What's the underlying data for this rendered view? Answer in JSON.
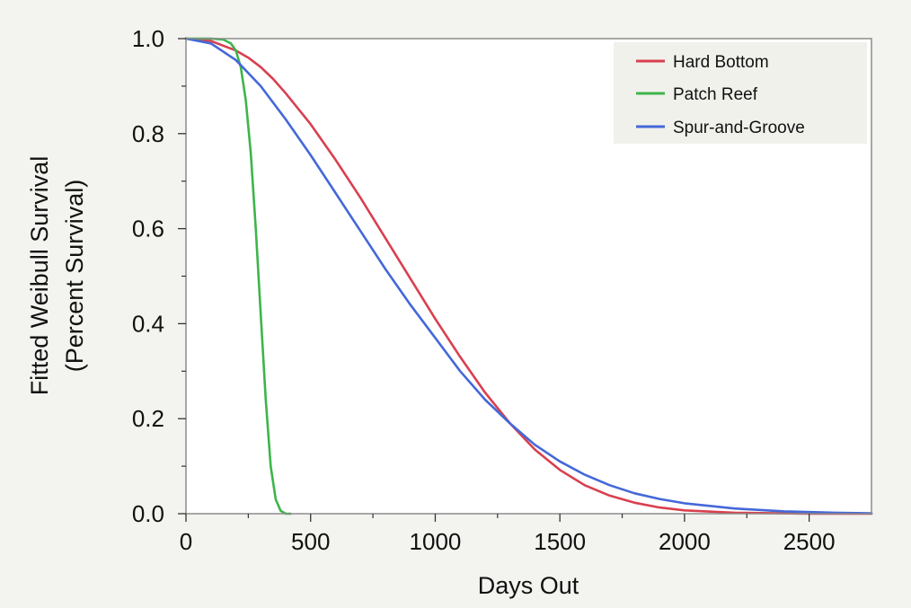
{
  "chart_data": {
    "type": "line",
    "xlabel": "Days Out",
    "ylabel_lines": [
      "Fitted Weibull Survival",
      "(Percent Survival)"
    ],
    "xlim": [
      0,
      2750
    ],
    "ylim": [
      0,
      1.0
    ],
    "x_ticks": [
      0,
      500,
      1000,
      1500,
      2000,
      2500
    ],
    "x_tick_labels": [
      "0",
      "500",
      "1000",
      "1500",
      "2000",
      "2500"
    ],
    "y_ticks": [
      0,
      0.2,
      0.4,
      0.6,
      0.8,
      1.0
    ],
    "y_tick_labels": [
      "0.0",
      "0.2",
      "0.4",
      "0.6",
      "0.8",
      "1.0"
    ],
    "y_minor_ticks": [
      0.1,
      0.3,
      0.5,
      0.7,
      0.9
    ],
    "grid": false,
    "legend_position": "top-right",
    "series": [
      {
        "name": "Hard Bottom",
        "color": "#d9404f",
        "points": [
          [
            0,
            1.0
          ],
          [
            100,
            0.995
          ],
          [
            200,
            0.975
          ],
          [
            250,
            0.96
          ],
          [
            300,
            0.94
          ],
          [
            350,
            0.915
          ],
          [
            400,
            0.885
          ],
          [
            500,
            0.82
          ],
          [
            600,
            0.745
          ],
          [
            700,
            0.665
          ],
          [
            800,
            0.58
          ],
          [
            900,
            0.495
          ],
          [
            1000,
            0.41
          ],
          [
            1100,
            0.33
          ],
          [
            1200,
            0.255
          ],
          [
            1300,
            0.19
          ],
          [
            1400,
            0.135
          ],
          [
            1500,
            0.092
          ],
          [
            1600,
            0.06
          ],
          [
            1700,
            0.038
          ],
          [
            1800,
            0.023
          ],
          [
            1900,
            0.013
          ],
          [
            2000,
            0.007
          ],
          [
            2200,
            0.002
          ],
          [
            2500,
            0.0
          ],
          [
            2750,
            0.0
          ]
        ]
      },
      {
        "name": "Patch Reef",
        "color": "#3db54a",
        "points": [
          [
            0,
            1.0
          ],
          [
            100,
            1.0
          ],
          [
            150,
            0.998
          ],
          [
            180,
            0.99
          ],
          [
            200,
            0.975
          ],
          [
            220,
            0.94
          ],
          [
            240,
            0.87
          ],
          [
            260,
            0.76
          ],
          [
            280,
            0.6
          ],
          [
            300,
            0.42
          ],
          [
            320,
            0.24
          ],
          [
            340,
            0.1
          ],
          [
            360,
            0.03
          ],
          [
            380,
            0.006
          ],
          [
            400,
            0.0
          ],
          [
            420,
            0.0
          ]
        ]
      },
      {
        "name": "Spur-and-Groove",
        "color": "#4468d8",
        "points": [
          [
            0,
            1.0
          ],
          [
            100,
            0.99
          ],
          [
            200,
            0.955
          ],
          [
            300,
            0.9
          ],
          [
            400,
            0.83
          ],
          [
            500,
            0.755
          ],
          [
            600,
            0.675
          ],
          [
            700,
            0.595
          ],
          [
            800,
            0.515
          ],
          [
            900,
            0.44
          ],
          [
            1000,
            0.37
          ],
          [
            1100,
            0.3
          ],
          [
            1200,
            0.24
          ],
          [
            1300,
            0.19
          ],
          [
            1400,
            0.145
          ],
          [
            1500,
            0.11
          ],
          [
            1600,
            0.082
          ],
          [
            1700,
            0.06
          ],
          [
            1800,
            0.043
          ],
          [
            1900,
            0.031
          ],
          [
            2000,
            0.022
          ],
          [
            2200,
            0.011
          ],
          [
            2400,
            0.005
          ],
          [
            2600,
            0.002
          ],
          [
            2750,
            0.001
          ]
        ]
      }
    ]
  }
}
